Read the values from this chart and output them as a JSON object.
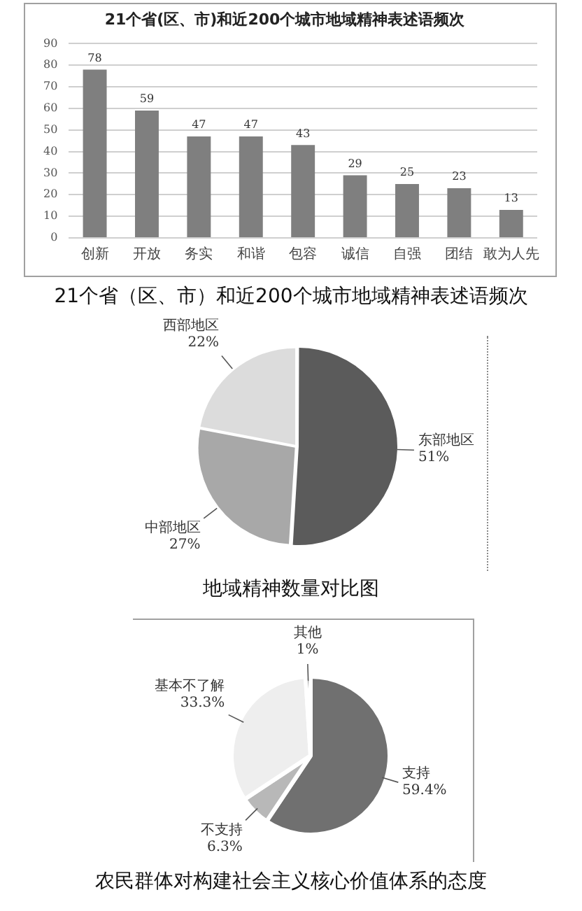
{
  "chart_data": [
    {
      "type": "bar",
      "title": "21个省(区、市)和近200个城市地域精神表述语频次",
      "categories": [
        "创新",
        "开放",
        "务实",
        "和谐",
        "包容",
        "诚信",
        "自强",
        "团结",
        "敢为人先"
      ],
      "values": [
        78,
        59,
        47,
        47,
        43,
        29,
        25,
        23,
        13
      ],
      "color": "#7f7f7f",
      "ylim": [
        0,
        90
      ],
      "yticks": [
        0,
        10,
        20,
        30,
        40,
        50,
        60,
        70,
        80,
        90
      ],
      "grid": "y",
      "data_labels": true,
      "legend": false,
      "annotations": [
        "21个省（区、市）和近200个城市地域精神表述语频次"
      ]
    },
    {
      "type": "pie",
      "title": "地域精神数量对比图",
      "categories": [
        "东部地区",
        "中部地区",
        "西部地区"
      ],
      "values": [
        51,
        27,
        22
      ],
      "colors": [
        "#5b5b5b",
        "#a8a8a8",
        "#dcdcdc"
      ],
      "value_labels": [
        "51%",
        "27%",
        "22%"
      ],
      "legend": false
    },
    {
      "type": "pie",
      "title": "农民群体对构建社会主义核心价值体系的态度",
      "categories": [
        "支持",
        "不支持",
        "基本不了解",
        "其他"
      ],
      "values": [
        59.4,
        6.3,
        33.3,
        1
      ],
      "colors": [
        "#707070",
        "#b8b8b8",
        "#eeeeee",
        "#666666"
      ],
      "value_labels": [
        "59.4%",
        "6.3%",
        "33.3%",
        "1%"
      ],
      "legend": false
    }
  ]
}
